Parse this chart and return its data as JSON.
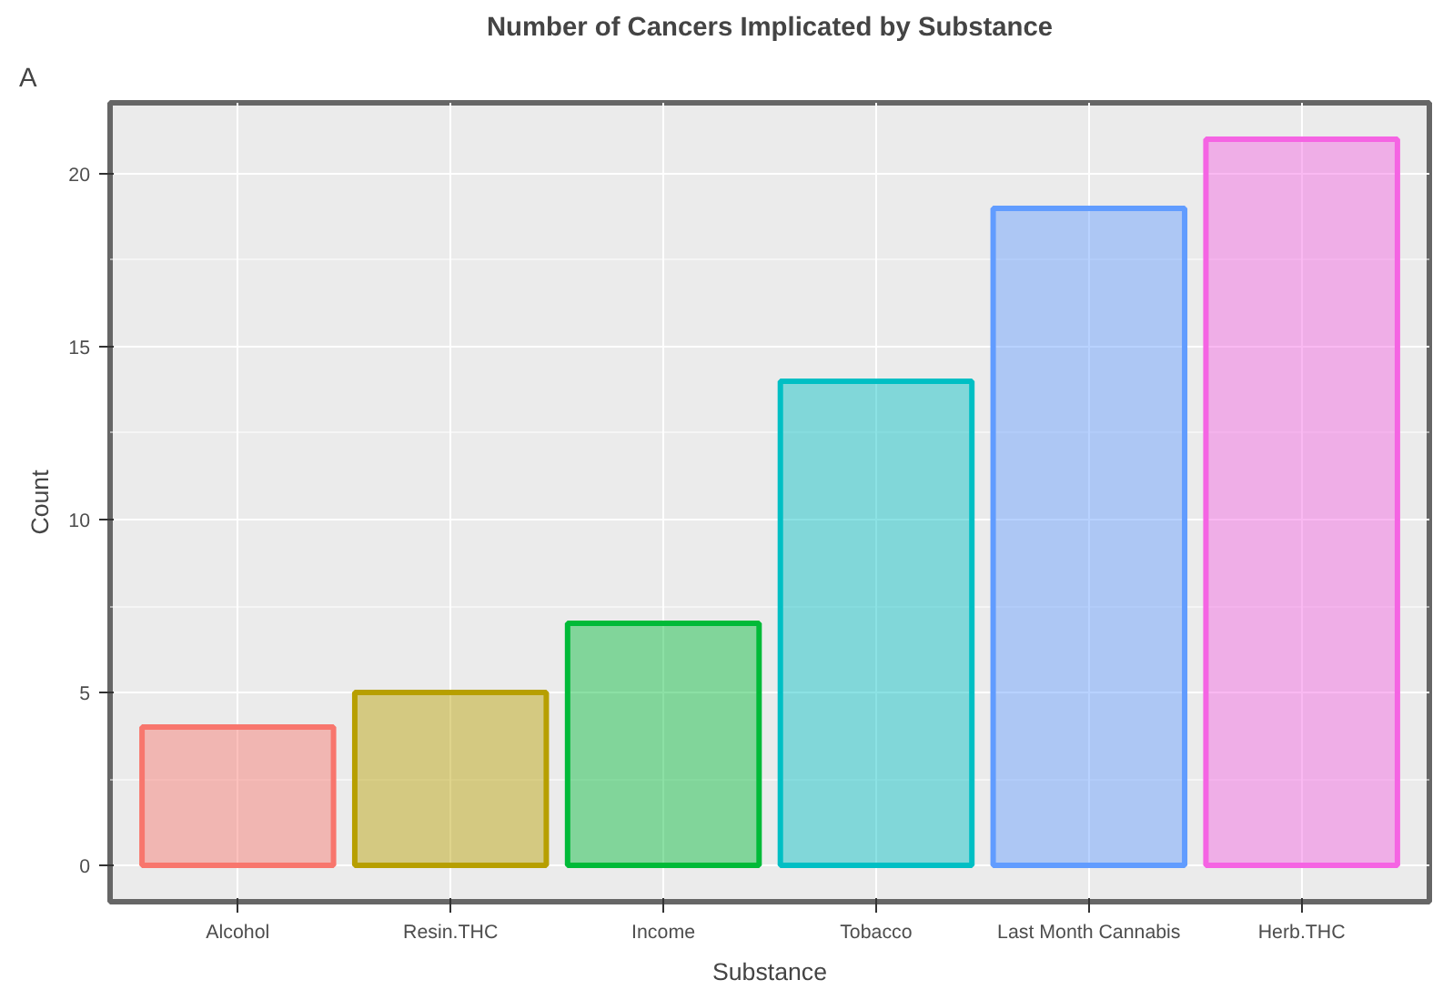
{
  "chart_data": {
    "type": "bar",
    "title": "Number of Cancers Implicated by Substance",
    "xlabel": "Substance",
    "ylabel": "Count",
    "categories": [
      "Alcohol",
      "Resin.THC",
      "Income",
      "Tobacco",
      "Last Month Cannabis",
      "Herb.THC"
    ],
    "values": [
      4,
      5,
      7,
      14,
      19,
      21
    ],
    "colors": [
      "#f8766d",
      "#b79f00",
      "#00ba38",
      "#00bfc4",
      "#619cff",
      "#f564e3"
    ],
    "ylim": [
      -1.05,
      22.05
    ],
    "yticks": [
      0,
      5,
      10,
      15,
      20
    ],
    "grid": true,
    "annotations": [
      "A"
    ]
  }
}
